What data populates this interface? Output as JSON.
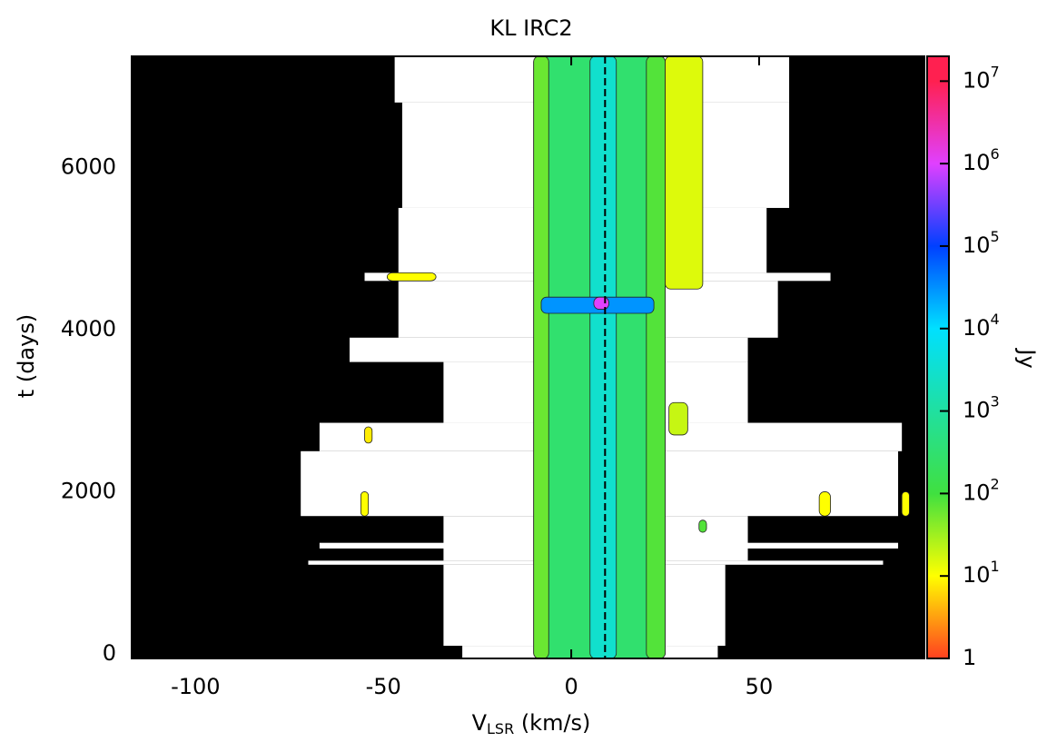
{
  "chart_data": {
    "type": "dynamic-spectrum",
    "title": "KL IRC2",
    "xlabel": {
      "main": "V",
      "sub": "LSR",
      "unit": " (km/s)"
    },
    "ylabel": "t (days)",
    "xlim": [
      -117,
      94
    ],
    "xticks": [
      -100,
      -50,
      0,
      50
    ],
    "ylim": [
      -56,
      7370
    ],
    "yticks": [
      0,
      2000,
      4000,
      6000
    ],
    "vline": 9,
    "colorbar": {
      "label": "Jy",
      "log": true,
      "clim": [
        1,
        20000000
      ],
      "colormap": [
        "#ff4020",
        "#ffff00",
        "#40e040",
        "#20e0a0",
        "#00e0ff",
        "#0040ff",
        "#e040ff",
        "#ff2050"
      ],
      "ticks": [
        1,
        {
          "value": 10,
          "label": "10",
          "sup": "1"
        },
        {
          "value": 100,
          "label": "10",
          "sup": "2"
        },
        {
          "value": 1000,
          "label": "10",
          "sup": "3"
        },
        {
          "value": 10000,
          "label": "10",
          "sup": "4"
        },
        {
          "value": 100000,
          "label": "10",
          "sup": "5"
        },
        {
          "value": 1000000,
          "label": "10",
          "sup": "6"
        },
        {
          "value": 10000000,
          "label": "10",
          "sup": "7"
        }
      ]
    },
    "coverage": [
      {
        "t": [
          -56,
          100
        ],
        "v": [
          -29,
          39
        ]
      },
      {
        "t": [
          100,
          1100
        ],
        "v": [
          -34,
          41
        ]
      },
      {
        "t": [
          1100,
          1150
        ],
        "v": [
          -70,
          83
        ]
      },
      {
        "t": [
          1150,
          1700
        ],
        "v": [
          -34,
          47
        ]
      },
      {
        "t": [
          1300,
          1370
        ],
        "v": [
          -67,
          87
        ]
      },
      {
        "t": [
          1700,
          2500
        ],
        "v": [
          -72,
          87
        ]
      },
      {
        "t": [
          2500,
          2850
        ],
        "v": [
          -67,
          88
        ]
      },
      {
        "t": [
          2850,
          3600
        ],
        "v": [
          -34,
          47
        ]
      },
      {
        "t": [
          3600,
          3900
        ],
        "v": [
          -59,
          47
        ]
      },
      {
        "t": [
          3900,
          4600
        ],
        "v": [
          -46,
          55
        ]
      },
      {
        "t": [
          4600,
          4700
        ],
        "v": [
          -55,
          69
        ]
      },
      {
        "t": [
          4700,
          5500
        ],
        "v": [
          -46,
          52
        ]
      },
      {
        "t": [
          5500,
          6800
        ],
        "v": [
          -45,
          58
        ]
      },
      {
        "t": [
          6800,
          7370
        ],
        "v": [
          -47,
          58
        ]
      }
    ],
    "features": [
      {
        "v": [
          -10,
          25
        ],
        "t": [
          -56,
          7370
        ],
        "flux": 300
      },
      {
        "v": [
          -10,
          -6
        ],
        "t": [
          -56,
          7370
        ],
        "flux": 60
      },
      {
        "v": [
          20,
          25
        ],
        "t": [
          -56,
          7370
        ],
        "flux": 80
      },
      {
        "v": [
          5,
          12
        ],
        "t": [
          -56,
          7370
        ],
        "flux": 3000
      },
      {
        "v": [
          25,
          35
        ],
        "t": [
          4500,
          7370
        ],
        "flux": 15
      },
      {
        "v": [
          -8,
          22
        ],
        "t": [
          4200,
          4400
        ],
        "flux": 30000
      },
      {
        "v": [
          6,
          10
        ],
        "t": [
          4250,
          4400
        ],
        "flux": 1000000
      },
      {
        "v": [
          -56,
          -54
        ],
        "t": [
          1700,
          2000
        ],
        "flux": 10
      },
      {
        "v": [
          66,
          69
        ],
        "t": [
          1700,
          2000
        ],
        "flux": 10
      },
      {
        "v": [
          88,
          90
        ],
        "t": [
          1700,
          2000
        ],
        "flux": 10
      },
      {
        "v": [
          -49,
          -36
        ],
        "t": [
          4600,
          4700
        ],
        "flux": 10
      },
      {
        "v": [
          -55,
          -53
        ],
        "t": [
          2600,
          2800
        ],
        "flux": 8
      },
      {
        "v": [
          26,
          31
        ],
        "t": [
          2700,
          3100
        ],
        "flux": 20
      },
      {
        "v": [
          34,
          36
        ],
        "t": [
          1500,
          1650
        ],
        "flux": 80
      }
    ]
  }
}
